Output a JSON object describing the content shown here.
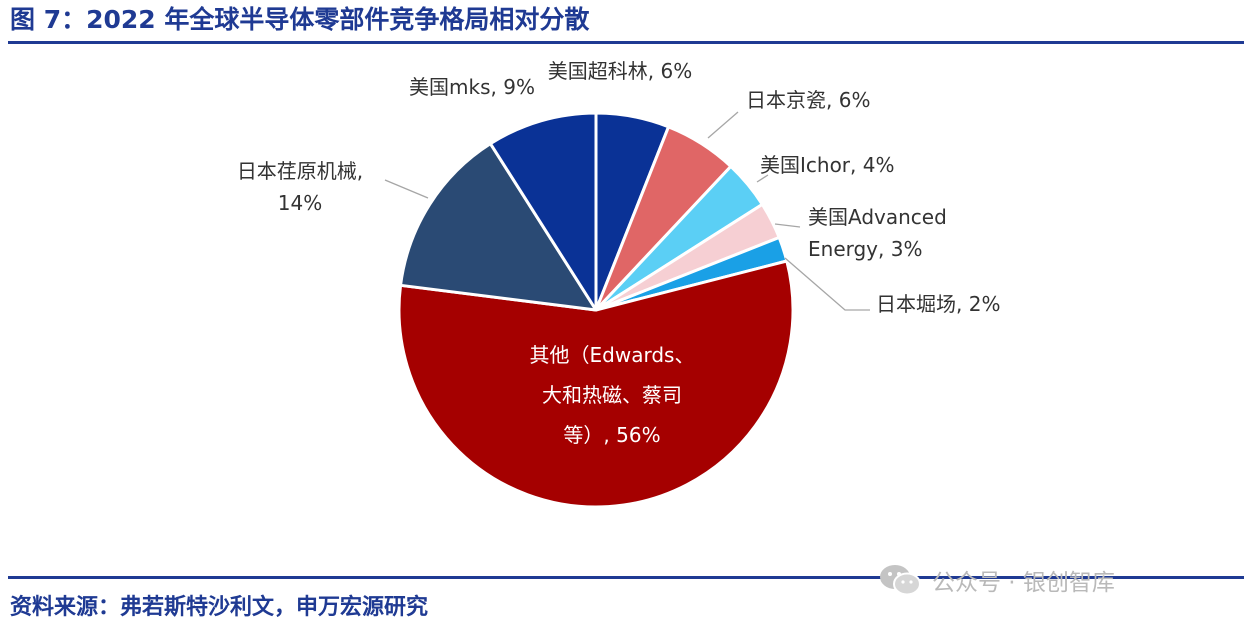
{
  "title": "图 7：2022 年全球半导体零部件竞争格局相对分散",
  "source": "资料来源：弗若斯特沙利文，申万宏源研究",
  "watermark": "公众号 · 银创智库",
  "chart_data": {
    "type": "pie",
    "title": "",
    "start": "12 o'clock, clockwise",
    "slices": [
      {
        "label_lines": [
          "美国超科林, 6%"
        ],
        "name": "美国超科林",
        "value": 6,
        "color": "#0a3296"
      },
      {
        "label_lines": [
          "日本京瓷, 6%"
        ],
        "name": "日本京瓷",
        "value": 6,
        "color": "#e06666"
      },
      {
        "label_lines": [
          "美国Ichor, 4%"
        ],
        "name": "美国Ichor",
        "value": 4,
        "color": "#5bcff5"
      },
      {
        "label_lines": [
          "美国Advanced",
          "Energy, 3%"
        ],
        "name": "美国Advanced Energy",
        "value": 3,
        "color": "#f6cfd3"
      },
      {
        "label_lines": [
          "日本堀场, 2%"
        ],
        "name": "日本堀场",
        "value": 2,
        "color": "#1aa0e6"
      },
      {
        "label_lines": [
          "其他（Edwards、",
          "大和热磁、蔡司",
          "等）, 56%"
        ],
        "name": "其他（Edwards、大和热磁、蔡司等）",
        "value": 56,
        "color": "#a50000"
      },
      {
        "label_lines": [
          "日本荏原机械,",
          "14%"
        ],
        "name": "日本荏原机械",
        "value": 14,
        "color": "#2a4a74"
      },
      {
        "label_lines": [
          "美国mks, 9%"
        ],
        "name": "美国mks",
        "value": 9,
        "color": "#0a3296"
      }
    ]
  }
}
